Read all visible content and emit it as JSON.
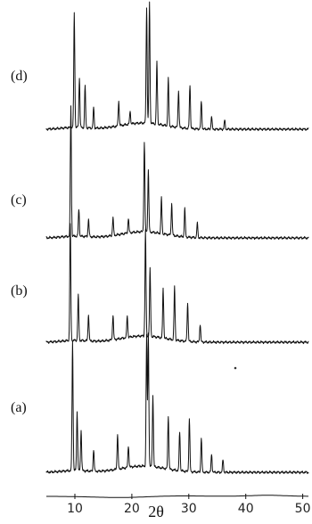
{
  "chart_data": {
    "type": "line",
    "title": "",
    "xlabel": "2θ",
    "ylabel": "",
    "xlim": [
      5,
      51
    ],
    "x_ticks": [
      10,
      20,
      30,
      40,
      50
    ],
    "y_axis_shown": false,
    "grid": false,
    "legend": "none",
    "stacked_offset": true,
    "colors": {
      "line": "#111111",
      "background": "#ffffff"
    },
    "series": [
      {
        "name": "(a)",
        "peaks": [
          [
            9.6,
            0.73
          ],
          [
            10.4,
            0.33
          ],
          [
            11.1,
            0.23
          ],
          [
            13.3,
            0.12
          ],
          [
            17.5,
            0.2
          ],
          [
            19.4,
            0.12
          ],
          [
            22.6,
            0.73
          ],
          [
            22.9,
            0.75
          ],
          [
            23.7,
            0.4
          ],
          [
            26.4,
            0.3
          ],
          [
            28.4,
            0.22
          ],
          [
            30.1,
            0.3
          ],
          [
            32.2,
            0.19
          ],
          [
            34,
            0.1
          ],
          [
            36,
            0.07
          ]
        ]
      },
      {
        "name": "(b)",
        "peaks": [
          [
            9.2,
            0.65
          ],
          [
            10.6,
            0.26
          ],
          [
            12.4,
            0.15
          ],
          [
            16.7,
            0.14
          ],
          [
            19.2,
            0.12
          ],
          [
            22.4,
            0.6
          ],
          [
            23.2,
            0.38
          ],
          [
            25.5,
            0.28
          ],
          [
            27.5,
            0.3
          ],
          [
            29.8,
            0.22
          ],
          [
            32,
            0.1
          ]
        ]
      },
      {
        "name": "(c)",
        "peaks": [
          [
            9.3,
            0.73
          ],
          [
            10.7,
            0.15
          ],
          [
            12.4,
            0.1
          ],
          [
            16.7,
            0.1
          ],
          [
            19.4,
            0.08
          ],
          [
            22.2,
            0.5
          ],
          [
            22.9,
            0.35
          ],
          [
            25.2,
            0.2
          ],
          [
            27,
            0.18
          ],
          [
            29.3,
            0.16
          ],
          [
            31.5,
            0.08
          ]
        ]
      },
      {
        "name": "(d)",
        "peaks": [
          [
            9.9,
            0.92
          ],
          [
            10.8,
            0.4
          ],
          [
            11.8,
            0.33
          ],
          [
            13.3,
            0.16
          ],
          [
            17.7,
            0.2
          ],
          [
            19.7,
            0.1
          ],
          [
            22.6,
            0.93
          ],
          [
            23.1,
            0.97
          ],
          [
            24.4,
            0.5
          ],
          [
            26.4,
            0.38
          ],
          [
            28.2,
            0.3
          ],
          [
            30.2,
            0.35
          ],
          [
            32.2,
            0.22
          ],
          [
            34,
            0.1
          ],
          [
            36.3,
            0.07
          ]
        ]
      }
    ]
  }
}
